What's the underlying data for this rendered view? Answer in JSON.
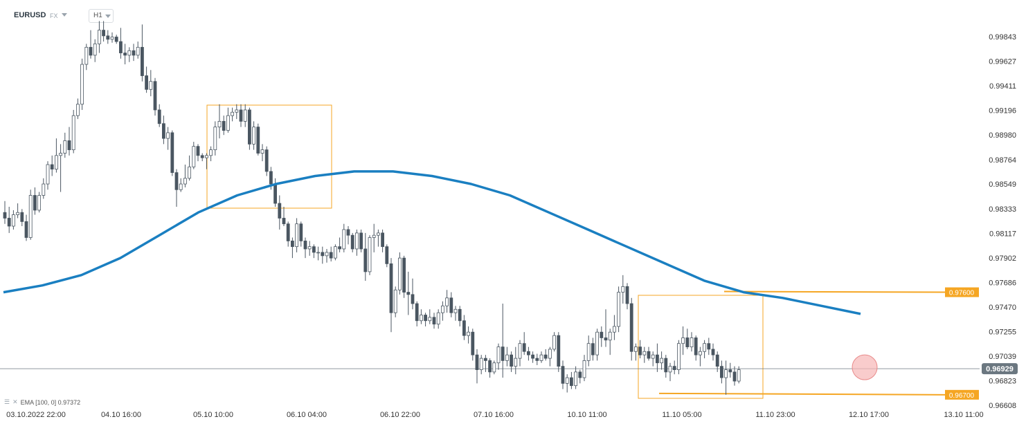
{
  "toolbar": {
    "symbol": "EURUSD",
    "market": "FX",
    "timeframe": "H1"
  },
  "indicator": {
    "label": "EMA [100,  0] 0.97372",
    "settings_icon": "layers-icon",
    "close_icon": "close-icon"
  },
  "colors": {
    "bull_body": "#ffffff",
    "bear_body": "#4a5661",
    "wick": "#4a5661",
    "ema": "#1a7fc1",
    "annotation": "#f5a623",
    "current_price": "#6b7780",
    "current_marker": "#f7b6b6",
    "axis_text": "#333333"
  },
  "chart_data": {
    "type": "candlestick",
    "title": "EURUSD",
    "timeframe": "H1",
    "ylim": [
      0.96608,
      0.99843
    ],
    "y_ticks": [
      "0.99843",
      "0.99627",
      "0.99411",
      "0.99196",
      "0.98980",
      "0.98764",
      "0.98549",
      "0.98333",
      "0.98117",
      "0.97902",
      "0.97686",
      "0.97470",
      "0.97255",
      "0.97039",
      "0.96823",
      "0.96608"
    ],
    "x_ticks": [
      "03.10.2022  22:00",
      "04.10  16:00",
      "05.10  10:00",
      "06.10  04:00",
      "06.10  22:00",
      "07.10  16:00",
      "10.10  11:00",
      "11.10  05:00",
      "11.10  23:00",
      "12.10  17:00",
      "13.10  11:00"
    ],
    "current_price": 0.96929,
    "current_price_label": "0.96929",
    "horizontal_levels": [
      {
        "label": "0.97600",
        "value": 0.976
      },
      {
        "label": "0.96700",
        "value": 0.967
      }
    ],
    "candles_x_start": 7,
    "candle_spacing": 6.2,
    "candles": [
      [
        0.983,
        0.984,
        0.982,
        0.9825
      ],
      [
        0.9825,
        0.9835,
        0.9812,
        0.9818
      ],
      [
        0.9818,
        0.9832,
        0.9815,
        0.9828
      ],
      [
        0.9828,
        0.9838,
        0.9825,
        0.983
      ],
      [
        0.983,
        0.9833,
        0.9818,
        0.9822
      ],
      [
        0.9822,
        0.9828,
        0.9805,
        0.9808
      ],
      [
        0.9808,
        0.985,
        0.9806,
        0.9845
      ],
      [
        0.9845,
        0.9852,
        0.9828,
        0.9832
      ],
      [
        0.9832,
        0.9848,
        0.983,
        0.9845
      ],
      [
        0.9845,
        0.986,
        0.9842,
        0.9855
      ],
      [
        0.9855,
        0.9875,
        0.985,
        0.9872
      ],
      [
        0.9872,
        0.988,
        0.9862,
        0.9868
      ],
      [
        0.9868,
        0.9895,
        0.9865,
        0.988
      ],
      [
        0.988,
        0.989,
        0.9848,
        0.9882
      ],
      [
        0.9882,
        0.99,
        0.9878,
        0.9893
      ],
      [
        0.9893,
        0.9905,
        0.988,
        0.9885
      ],
      [
        0.9885,
        0.992,
        0.9882,
        0.9915
      ],
      [
        0.9915,
        0.993,
        0.9912,
        0.9925
      ],
      [
        0.9925,
        0.9965,
        0.992,
        0.996
      ],
      [
        0.996,
        0.9978,
        0.9955,
        0.9975
      ],
      [
        0.9975,
        0.999,
        0.9965,
        0.9968
      ],
      [
        0.9968,
        0.9982,
        0.9962,
        0.9978
      ],
      [
        0.9978,
        0.9998,
        0.997,
        0.999
      ],
      [
        0.999,
        0.9998,
        0.998,
        0.9985
      ],
      [
        0.9985,
        0.999,
        0.9978,
        0.9982
      ],
      [
        0.9982,
        0.9988,
        0.9979,
        0.9984
      ],
      [
        0.9984,
        0.9986,
        0.9978,
        0.998
      ],
      [
        0.998,
        0.9992,
        0.9965,
        0.997
      ],
      [
        0.997,
        0.9978,
        0.996,
        0.9968
      ],
      [
        0.9968,
        0.9975,
        0.9962,
        0.9972
      ],
      [
        0.9972,
        0.9978,
        0.9963,
        0.9968
      ],
      [
        0.9968,
        0.998,
        0.9965,
        0.9975
      ],
      [
        0.9975,
        0.9995,
        0.9945,
        0.995
      ],
      [
        0.995,
        0.9958,
        0.9935,
        0.9938
      ],
      [
        0.9938,
        0.9955,
        0.9932,
        0.9945
      ],
      [
        0.9945,
        0.9948,
        0.9915,
        0.992
      ],
      [
        0.992,
        0.9925,
        0.9905,
        0.9908
      ],
      [
        0.9908,
        0.9915,
        0.989,
        0.9895
      ],
      [
        0.9895,
        0.9905,
        0.9885,
        0.99
      ],
      [
        0.99,
        0.9902,
        0.9862,
        0.9865
      ],
      [
        0.9865,
        0.9868,
        0.9835,
        0.985
      ],
      [
        0.985,
        0.986,
        0.9848,
        0.9855
      ],
      [
        0.9855,
        0.9872,
        0.9852,
        0.986
      ],
      [
        0.986,
        0.988,
        0.9858,
        0.987
      ],
      [
        0.987,
        0.9892,
        0.9868,
        0.9888
      ],
      [
        0.9888,
        0.989,
        0.9875,
        0.988
      ],
      [
        0.988,
        0.9882,
        0.9875,
        0.9878
      ],
      [
        0.9878,
        0.9882,
        0.9868,
        0.988
      ],
      [
        0.988,
        0.9888,
        0.9875,
        0.9885
      ],
      [
        0.9885,
        0.991,
        0.988,
        0.9905
      ],
      [
        0.9905,
        0.9925,
        0.9895,
        0.991
      ],
      [
        0.991,
        0.9915,
        0.9898,
        0.9902
      ],
      [
        0.9902,
        0.9922,
        0.99,
        0.9915
      ],
      [
        0.9915,
        0.9922,
        0.991,
        0.9918
      ],
      [
        0.9918,
        0.9925,
        0.9912,
        0.992
      ],
      [
        0.992,
        0.9925,
        0.9905,
        0.991
      ],
      [
        0.991,
        0.9925,
        0.9905,
        0.992
      ],
      [
        0.992,
        0.9922,
        0.9885,
        0.989
      ],
      [
        0.989,
        0.991,
        0.9885,
        0.9905
      ],
      [
        0.9905,
        0.9908,
        0.988,
        0.9882
      ],
      [
        0.9882,
        0.989,
        0.9875,
        0.9885
      ],
      [
        0.9885,
        0.9888,
        0.9862,
        0.9866
      ],
      [
        0.9866,
        0.987,
        0.985,
        0.9855
      ],
      [
        0.9855,
        0.986,
        0.9835,
        0.9838
      ],
      [
        0.9838,
        0.9845,
        0.9815,
        0.9825
      ],
      [
        0.9825,
        0.9835,
        0.9818,
        0.982
      ],
      [
        0.982,
        0.9822,
        0.98,
        0.9805
      ],
      [
        0.9805,
        0.9808,
        0.979,
        0.98
      ],
      [
        0.98,
        0.9825,
        0.9795,
        0.982
      ],
      [
        0.982,
        0.9822,
        0.98,
        0.9805
      ],
      [
        0.9805,
        0.9808,
        0.979,
        0.9798
      ],
      [
        0.9798,
        0.9805,
        0.9792,
        0.98
      ],
      [
        0.98,
        0.9802,
        0.979,
        0.9795
      ],
      [
        0.9795,
        0.98,
        0.9788,
        0.9795
      ],
      [
        0.9795,
        0.98,
        0.9785,
        0.9792
      ],
      [
        0.9792,
        0.9798,
        0.9786,
        0.9795
      ],
      [
        0.9795,
        0.98,
        0.9787,
        0.979
      ],
      [
        0.979,
        0.9802,
        0.9788,
        0.98
      ],
      [
        0.98,
        0.9808,
        0.9795,
        0.9798
      ],
      [
        0.9798,
        0.982,
        0.9795,
        0.9815
      ],
      [
        0.9815,
        0.9818,
        0.9802,
        0.981
      ],
      [
        0.981,
        0.9812,
        0.9795,
        0.9798
      ],
      [
        0.9798,
        0.9815,
        0.9792,
        0.9812
      ],
      [
        0.9812,
        0.9815,
        0.9795,
        0.9798
      ],
      [
        0.9798,
        0.9812,
        0.977,
        0.9778
      ],
      [
        0.9778,
        0.981,
        0.9775,
        0.9808
      ],
      [
        0.9808,
        0.982,
        0.9795,
        0.981
      ],
      [
        0.981,
        0.9815,
        0.98,
        0.9812
      ],
      [
        0.9812,
        0.9815,
        0.9795,
        0.98
      ],
      [
        0.98,
        0.9802,
        0.9782,
        0.9785
      ],
      [
        0.9785,
        0.979,
        0.9725,
        0.9742
      ],
      [
        0.9742,
        0.9765,
        0.9738,
        0.9762
      ],
      [
        0.9762,
        0.9795,
        0.9758,
        0.979
      ],
      [
        0.979,
        0.9792,
        0.9755,
        0.976
      ],
      [
        0.976,
        0.9778,
        0.974,
        0.9758
      ],
      [
        0.9758,
        0.9772,
        0.9745,
        0.975
      ],
      [
        0.975,
        0.9752,
        0.973,
        0.9735
      ],
      [
        0.9735,
        0.9745,
        0.9732,
        0.974
      ],
      [
        0.974,
        0.9742,
        0.973,
        0.9735
      ],
      [
        0.9735,
        0.9745,
        0.9732,
        0.9738
      ],
      [
        0.9738,
        0.9742,
        0.9728,
        0.9732
      ],
      [
        0.9732,
        0.9745,
        0.9728,
        0.9742
      ],
      [
        0.9742,
        0.9752,
        0.9735,
        0.9748
      ],
      [
        0.9748,
        0.9762,
        0.9742,
        0.9755
      ],
      [
        0.9755,
        0.976,
        0.9738,
        0.9742
      ],
      [
        0.9742,
        0.9748,
        0.9735,
        0.9745
      ],
      [
        0.9745,
        0.9748,
        0.973,
        0.9735
      ],
      [
        0.9735,
        0.974,
        0.9718,
        0.9722
      ],
      [
        0.9722,
        0.973,
        0.9715,
        0.9725
      ],
      [
        0.9725,
        0.9728,
        0.97,
        0.9705
      ],
      [
        0.9705,
        0.971,
        0.968,
        0.9692
      ],
      [
        0.9692,
        0.9705,
        0.9688,
        0.9702
      ],
      [
        0.9702,
        0.9705,
        0.969,
        0.97
      ],
      [
        0.97,
        0.9702,
        0.9685,
        0.969
      ],
      [
        0.969,
        0.97,
        0.9688,
        0.9698
      ],
      [
        0.9698,
        0.9715,
        0.9692,
        0.9712
      ],
      [
        0.9712,
        0.975,
        0.9685,
        0.97
      ],
      [
        0.97,
        0.9712,
        0.9695,
        0.9705
      ],
      [
        0.9705,
        0.9708,
        0.969,
        0.9695
      ],
      [
        0.9695,
        0.9712,
        0.9688,
        0.9702
      ],
      [
        0.9702,
        0.9718,
        0.9695,
        0.9715
      ],
      [
        0.9715,
        0.9725,
        0.9705,
        0.9708
      ],
      [
        0.9708,
        0.9712,
        0.97,
        0.9705
      ],
      [
        0.9705,
        0.9708,
        0.9698,
        0.9702
      ],
      [
        0.9702,
        0.9706,
        0.9696,
        0.97
      ],
      [
        0.97,
        0.9708,
        0.9698,
        0.9705
      ],
      [
        0.9705,
        0.971,
        0.97,
        0.9702
      ],
      [
        0.9702,
        0.9712,
        0.9695,
        0.971
      ],
      [
        0.971,
        0.9725,
        0.9708,
        0.9722
      ],
      [
        0.9722,
        0.9725,
        0.969,
        0.9695
      ],
      [
        0.9695,
        0.97,
        0.9675,
        0.968
      ],
      [
        0.968,
        0.9688,
        0.9672,
        0.9685
      ],
      [
        0.9685,
        0.969,
        0.9675,
        0.9678
      ],
      [
        0.9678,
        0.9695,
        0.9675,
        0.969
      ],
      [
        0.969,
        0.9692,
        0.968,
        0.9685
      ],
      [
        0.9685,
        0.9705,
        0.9682,
        0.97
      ],
      [
        0.97,
        0.9722,
        0.9695,
        0.9715
      ],
      [
        0.9715,
        0.972,
        0.97,
        0.9705
      ],
      [
        0.9705,
        0.9728,
        0.97,
        0.9725
      ],
      [
        0.9725,
        0.973,
        0.9712,
        0.972
      ],
      [
        0.972,
        0.9745,
        0.9712,
        0.9718
      ],
      [
        0.9718,
        0.9728,
        0.9705,
        0.9725
      ],
      [
        0.9725,
        0.974,
        0.9718,
        0.973
      ],
      [
        0.973,
        0.9765,
        0.9725,
        0.976
      ],
      [
        0.976,
        0.9775,
        0.975,
        0.9765
      ],
      [
        0.9765,
        0.9768,
        0.9745,
        0.975
      ],
      [
        0.975,
        0.9755,
        0.97,
        0.9708
      ],
      [
        0.9708,
        0.9715,
        0.97,
        0.9712
      ],
      [
        0.9712,
        0.9718,
        0.9702,
        0.9705
      ],
      [
        0.9705,
        0.9712,
        0.9698,
        0.9708
      ],
      [
        0.9708,
        0.9712,
        0.97,
        0.9702
      ],
      [
        0.9702,
        0.9708,
        0.9695,
        0.9705
      ],
      [
        0.9705,
        0.9715,
        0.969,
        0.9698
      ],
      [
        0.9698,
        0.9708,
        0.9692,
        0.9702
      ],
      [
        0.9702,
        0.9705,
        0.9685,
        0.969
      ],
      [
        0.969,
        0.9698,
        0.9682,
        0.9695
      ],
      [
        0.9695,
        0.97,
        0.9688,
        0.9692
      ],
      [
        0.9692,
        0.9718,
        0.9688,
        0.9715
      ],
      [
        0.9715,
        0.973,
        0.9705,
        0.972
      ],
      [
        0.972,
        0.9728,
        0.971,
        0.9712
      ],
      [
        0.9712,
        0.9725,
        0.9708,
        0.972
      ],
      [
        0.972,
        0.9722,
        0.97,
        0.9705
      ],
      [
        0.9705,
        0.9712,
        0.9695,
        0.9708
      ],
      [
        0.9708,
        0.9718,
        0.9702,
        0.9715
      ],
      [
        0.9715,
        0.972,
        0.9705,
        0.971
      ],
      [
        0.971,
        0.9715,
        0.97,
        0.9705
      ],
      [
        0.9705,
        0.9708,
        0.969,
        0.9695
      ],
      [
        0.9695,
        0.97,
        0.968,
        0.9685
      ],
      [
        0.9685,
        0.97,
        0.967,
        0.9692
      ],
      [
        0.9692,
        0.9698,
        0.9685,
        0.969
      ],
      [
        0.969,
        0.9695,
        0.9678,
        0.9682
      ],
      [
        0.9682,
        0.9695,
        0.968,
        0.9692
      ]
    ],
    "ema_label": "EMA [100,  0]",
    "ema_value": "0.97372",
    "ema_path": [
      [
        0.976,
        0
      ],
      [
        0.9766,
        0.04
      ],
      [
        0.9775,
        0.08
      ],
      [
        0.979,
        0.12
      ],
      [
        0.981,
        0.16
      ],
      [
        0.983,
        0.2
      ],
      [
        0.9845,
        0.24
      ],
      [
        0.9855,
        0.28
      ],
      [
        0.9862,
        0.32
      ],
      [
        0.9866,
        0.36
      ],
      [
        0.9866,
        0.4
      ],
      [
        0.9862,
        0.44
      ],
      [
        0.9855,
        0.48
      ],
      [
        0.9845,
        0.52
      ],
      [
        0.983,
        0.56
      ],
      [
        0.9815,
        0.6
      ],
      [
        0.98,
        0.64
      ],
      [
        0.9785,
        0.68
      ],
      [
        0.977,
        0.72
      ],
      [
        0.976,
        0.76
      ],
      [
        0.9755,
        0.8
      ],
      [
        0.9748,
        0.84
      ],
      [
        0.9741,
        0.88
      ]
    ]
  }
}
